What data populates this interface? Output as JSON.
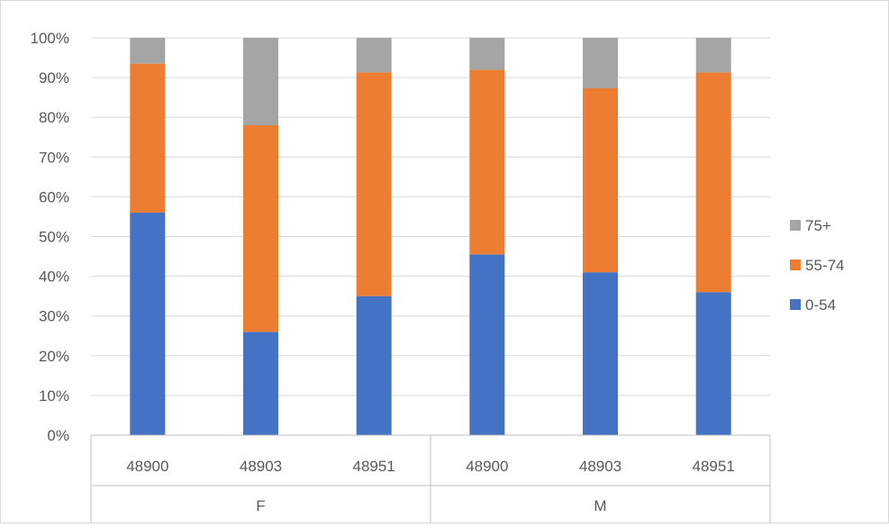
{
  "chart_data": {
    "type": "bar",
    "stacked": "percent",
    "title": "",
    "xlabel": "",
    "ylabel": "",
    "ylim": [
      0,
      100
    ],
    "y_ticks": [
      "0%",
      "10%",
      "20%",
      "30%",
      "40%",
      "50%",
      "60%",
      "70%",
      "80%",
      "90%",
      "100%"
    ],
    "categories": [
      "48900",
      "48903",
      "48951",
      "48900",
      "48903",
      "48951"
    ],
    "groups": [
      {
        "label": "F",
        "categories": [
          "48900",
          "48903",
          "48951"
        ]
      },
      {
        "label": "M",
        "categories": [
          "48900",
          "48903",
          "48951"
        ]
      }
    ],
    "series": [
      {
        "name": "0-54",
        "color": "#4472C4",
        "values": [
          56,
          26,
          35,
          45.5,
          41,
          36
        ]
      },
      {
        "name": "55-74",
        "color": "#ED7D31",
        "values": [
          37.5,
          52,
          56.3,
          46.5,
          46.3,
          55.3
        ]
      },
      {
        "name": "75+",
        "color": "#A5A5A5",
        "values": [
          6.5,
          22,
          8.7,
          8,
          12.7,
          8.7
        ]
      }
    ],
    "legend_order": [
      "75+",
      "55-74",
      "0-54"
    ],
    "legend_position": "right",
    "grid": true
  }
}
